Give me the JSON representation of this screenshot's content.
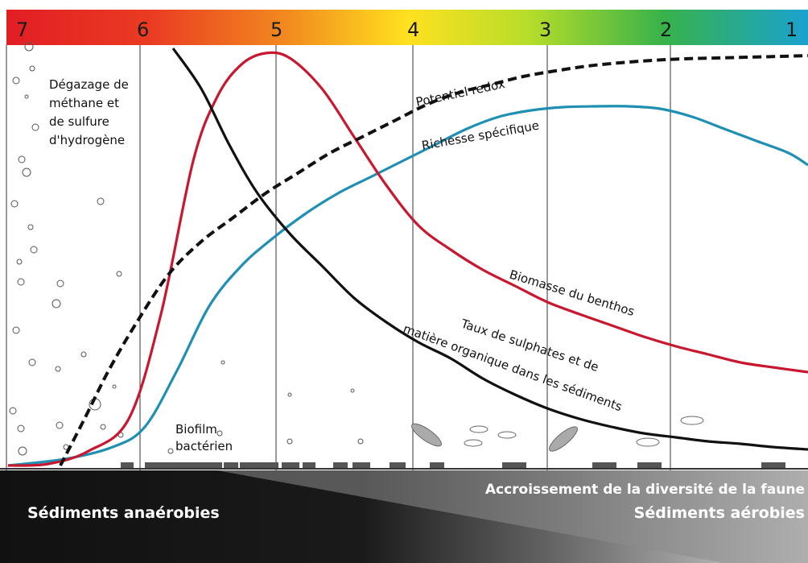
{
  "scale": {
    "zones": [
      "7",
      "6",
      "5",
      "4",
      "3",
      "2",
      "1"
    ],
    "gradient_colors": [
      "#e21d24",
      "#f27c22",
      "#ffd71f",
      "#c9e02a",
      "#3fb34a",
      "#1aa2cf"
    ]
  },
  "labels": {
    "gas_release": [
      "Dégazage de",
      "méthane et",
      "de sulfure",
      "d'hydrogène"
    ],
    "potentiel_redox": "Potentiel redox",
    "richesse": "Richesse spécifique",
    "biomasse": "Biomasse du benthos",
    "sulphates_line1": "Taux de sulphates et de",
    "sulphates_line2": "matière organique dans les sédiments",
    "biofilm_line1": "Biofilm",
    "biofilm_line2": "bactérien",
    "faune": "Accroissement de la diversité de la faune",
    "sed_anaerobies": "Sédiments anaérobies",
    "sed_aerobies": "Sédiments aérobies"
  },
  "colors": {
    "biomasse": "#c8172e",
    "richesse": "#1f8fb3",
    "sulphates": "#111111",
    "redox": "#111111",
    "sediment_dark": "#111111"
  },
  "curves": {
    "biomasse": [
      [
        10,
        578
      ],
      [
        60,
        576
      ],
      [
        110,
        560
      ],
      [
        160,
        520
      ],
      [
        200,
        390
      ],
      [
        240,
        200
      ],
      [
        270,
        120
      ],
      [
        300,
        80
      ],
      [
        330,
        66
      ],
      [
        360,
        72
      ],
      [
        400,
        110
      ],
      [
        440,
        170
      ],
      [
        480,
        230
      ],
      [
        520,
        280
      ],
      [
        560,
        310
      ],
      [
        600,
        335
      ],
      [
        640,
        355
      ],
      [
        680,
        375
      ],
      [
        720,
        390
      ],
      [
        760,
        404
      ],
      [
        800,
        418
      ],
      [
        840,
        430
      ],
      [
        880,
        440
      ],
      [
        920,
        450
      ],
      [
        960,
        456
      ],
      [
        1004,
        462
      ]
    ],
    "richesse": [
      [
        10,
        578
      ],
      [
        80,
        570
      ],
      [
        140,
        555
      ],
      [
        180,
        530
      ],
      [
        220,
        460
      ],
      [
        260,
        380
      ],
      [
        300,
        330
      ],
      [
        340,
        295
      ],
      [
        380,
        265
      ],
      [
        420,
        240
      ],
      [
        460,
        220
      ],
      [
        500,
        200
      ],
      [
        540,
        180
      ],
      [
        580,
        160
      ],
      [
        620,
        145
      ],
      [
        660,
        137
      ],
      [
        700,
        133
      ],
      [
        740,
        132
      ],
      [
        780,
        132
      ],
      [
        820,
        135
      ],
      [
        860,
        145
      ],
      [
        900,
        160
      ],
      [
        940,
        175
      ],
      [
        980,
        190
      ],
      [
        1004,
        205
      ]
    ],
    "sulphates": [
      [
        215,
        60
      ],
      [
        250,
        110
      ],
      [
        285,
        180
      ],
      [
        320,
        240
      ],
      [
        360,
        290
      ],
      [
        400,
        330
      ],
      [
        440,
        370
      ],
      [
        480,
        400
      ],
      [
        520,
        425
      ],
      [
        560,
        445
      ],
      [
        600,
        470
      ],
      [
        640,
        490
      ],
      [
        680,
        507
      ],
      [
        720,
        520
      ],
      [
        760,
        530
      ],
      [
        800,
        538
      ],
      [
        840,
        543
      ],
      [
        880,
        548
      ],
      [
        920,
        551
      ],
      [
        960,
        555
      ],
      [
        1004,
        558
      ]
    ],
    "redox": [
      [
        75,
        578
      ],
      [
        105,
        520
      ],
      [
        135,
        460
      ],
      [
        170,
        400
      ],
      [
        210,
        340
      ],
      [
        250,
        300
      ],
      [
        290,
        270
      ],
      [
        330,
        240
      ],
      [
        370,
        215
      ],
      [
        410,
        190
      ],
      [
        450,
        170
      ],
      [
        490,
        150
      ],
      [
        530,
        130
      ],
      [
        570,
        115
      ],
      [
        610,
        105
      ],
      [
        650,
        95
      ],
      [
        690,
        88
      ],
      [
        730,
        82
      ],
      [
        770,
        78
      ],
      [
        810,
        75
      ],
      [
        850,
        73
      ],
      [
        890,
        72
      ],
      [
        930,
        71
      ],
      [
        970,
        70
      ],
      [
        1004,
        69
      ]
    ]
  }
}
